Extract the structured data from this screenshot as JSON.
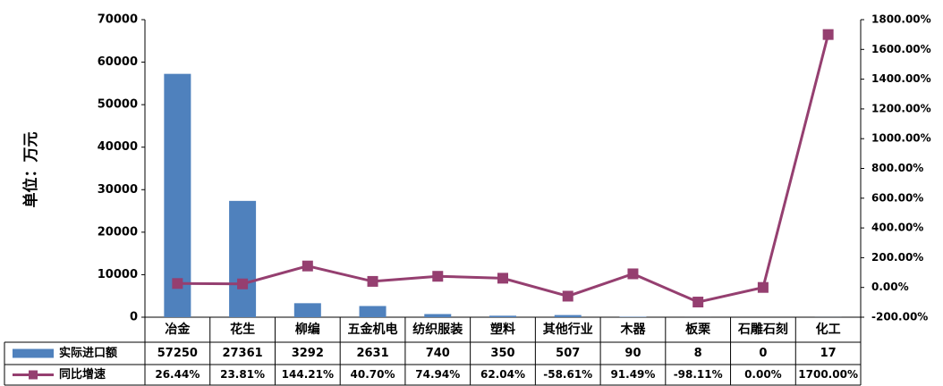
{
  "chart_data": {
    "type": "bar_line",
    "y_label": "单位：万元",
    "categories": [
      "冶金",
      "花生",
      "柳编",
      "五金机电",
      "纺织服装",
      "塑料",
      "其他行业",
      "木器",
      "板栗",
      "石雕石刻",
      "化工"
    ],
    "series": [
      {
        "name": "实际进口额",
        "color": "#4f81bd",
        "type": "bar",
        "values": [
          57250,
          27361,
          3292,
          2631,
          740,
          350,
          507,
          90,
          8,
          0,
          17
        ]
      },
      {
        "name": "同比增速",
        "color": "#953f70",
        "type": "line",
        "axis": "y2",
        "values": [
          26.44,
          23.81,
          144.21,
          40.7,
          74.94,
          62.04,
          -58.61,
          91.49,
          -98.11,
          0.0,
          1700.0
        ],
        "value_labels": [
          "26.44%",
          "23.81%",
          "144.21%",
          "40.70%",
          "74.94%",
          "62.04%",
          "-58.61%",
          "91.49%",
          "-98.11%",
          "0.00%",
          "1700.00%"
        ]
      }
    ],
    "ylim": [
      0,
      70000
    ],
    "yticks": [
      0,
      10000,
      20000,
      30000,
      40000,
      50000,
      60000,
      70000
    ],
    "y2lim": [
      -200,
      1800
    ],
    "y2ticks": [
      {
        "value": -200,
        "label": "-200.00%"
      },
      {
        "value": 0,
        "label": "0.00%"
      },
      {
        "value": 200,
        "label": "200.00%"
      },
      {
        "value": 400,
        "label": "400.00%"
      },
      {
        "value": 600,
        "label": "600.00%"
      },
      {
        "value": 800,
        "label": "800.00%"
      },
      {
        "value": 1000,
        "label": "1000.00%"
      },
      {
        "value": 1200,
        "label": "1200.00%"
      },
      {
        "value": 1400,
        "label": "1400.00%"
      },
      {
        "value": 1600,
        "label": "1600.00%"
      },
      {
        "value": 1800,
        "label": "1800.00%"
      }
    ]
  }
}
